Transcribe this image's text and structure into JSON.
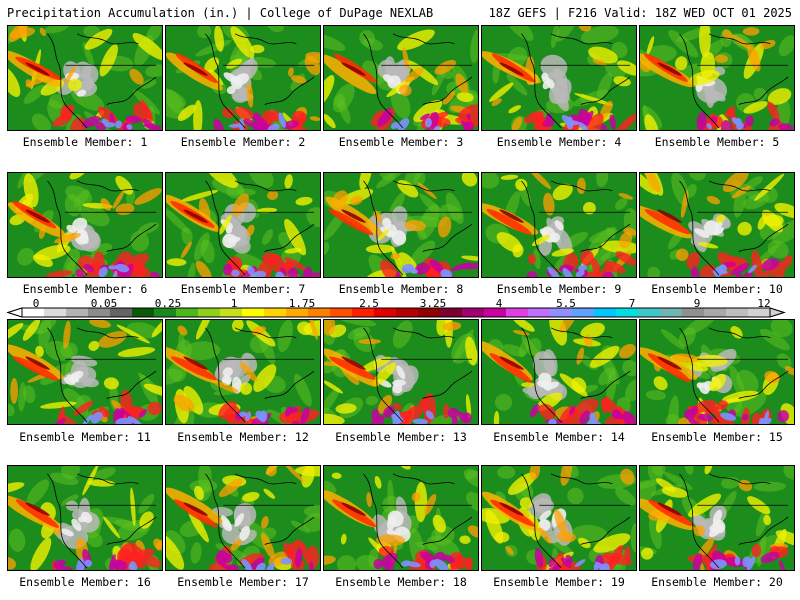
{
  "header": {
    "left": "Precipitation Accumulation (in.) | College of DuPage NEXLAB",
    "right": "18Z GEFS | F216 Valid: 18Z WED OCT 01 2025"
  },
  "members": [
    "Ensemble Member: 1",
    "Ensemble Member: 2",
    "Ensemble Member: 3",
    "Ensemble Member: 4",
    "Ensemble Member: 5",
    "Ensemble Member: 6",
    "Ensemble Member: 7",
    "Ensemble Member: 8",
    "Ensemble Member: 9",
    "Ensemble Member: 10",
    "Ensemble Member: 11",
    "Ensemble Member: 12",
    "Ensemble Member: 13",
    "Ensemble Member: 14",
    "Ensemble Member: 15",
    "Ensemble Member: 16",
    "Ensemble Member: 17",
    "Ensemble Member: 18",
    "Ensemble Member: 19",
    "Ensemble Member: 20"
  ],
  "colorbar": {
    "labels": [
      "0",
      "0.05",
      "0.25",
      "1",
      "1.75",
      "2.5",
      "3.25",
      "4",
      "5.5",
      "7",
      "9",
      "12"
    ],
    "colors": [
      "#ffffff",
      "#dcdcdc",
      "#b4b4b4",
      "#8c8c8c",
      "#646464",
      "#0a5a0a",
      "#1a8a1a",
      "#4cb81c",
      "#8cd01c",
      "#c8e01c",
      "#ffff00",
      "#ffd400",
      "#ffaa00",
      "#ff8000",
      "#ff5000",
      "#ff2000",
      "#e00000",
      "#b40000",
      "#900000",
      "#7a0030",
      "#a00070",
      "#c800a0",
      "#e040e0",
      "#c070ff",
      "#9090ff",
      "#60a0ff",
      "#00c8ff",
      "#00e0e0",
      "#40c8c8",
      "#70b4b4",
      "#909090",
      "#a8a8a8",
      "#bebebe",
      "#d2d2d2"
    ]
  }
}
